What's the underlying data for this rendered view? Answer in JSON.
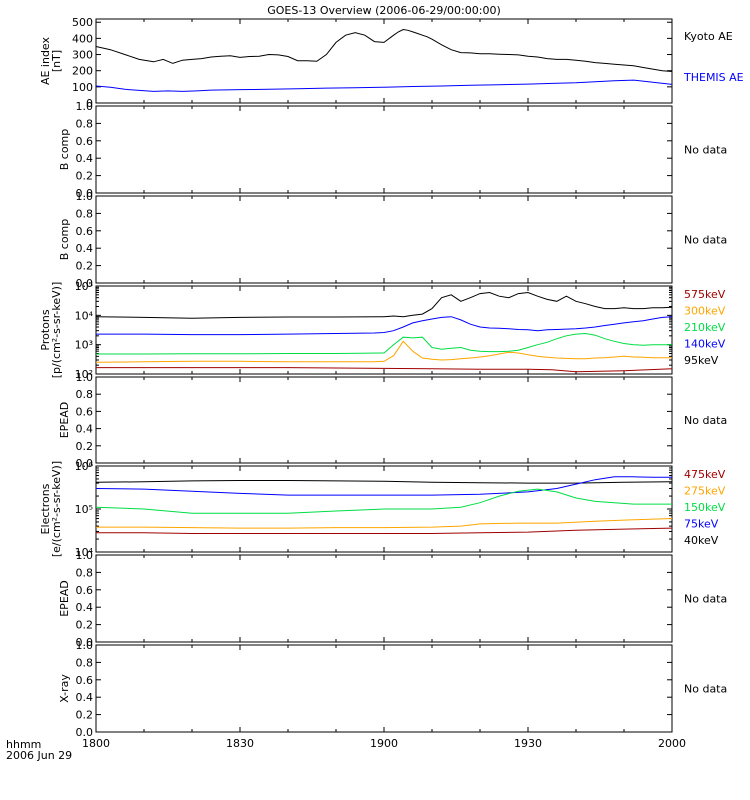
{
  "chart_data": {
    "type": "line",
    "title": "GOES-13 Overview (2006-06-29/00:00:00)",
    "x_axis": {
      "ticks": [
        "1800",
        "1830",
        "1900",
        "1930",
        "2000"
      ],
      "tick_values": [
        0,
        30,
        60,
        90,
        120
      ],
      "range": [
        0,
        120
      ],
      "label_line1": "hhmm",
      "label_line2": "2006 Jun 29"
    },
    "panels": [
      {
        "id": "ae",
        "ylabel": [
          "AE index",
          "[nT]"
        ],
        "scale": "linear",
        "ylim": [
          0,
          520
        ],
        "yticks": [
          "0",
          "100",
          "200",
          "300",
          "400",
          "500"
        ],
        "ytick_values": [
          0,
          100,
          200,
          300,
          400,
          500
        ],
        "series": [
          {
            "name": "Kyoto AE",
            "color": "#000000",
            "x": [
              0,
              3,
              6,
              9,
              12,
              14,
              16,
              18,
              20,
              22,
              24,
              26,
              28,
              30,
              32,
              34,
              36,
              38,
              40,
              42,
              44,
              46,
              48,
              50,
              52,
              54,
              56,
              58,
              60,
              62,
              63,
              64,
              65,
              66,
              67,
              68,
              69,
              70,
              72,
              74,
              76,
              78,
              80,
              82,
              84,
              86,
              88,
              90,
              92,
              94,
              96,
              98,
              100,
              102,
              104,
              106,
              108,
              110,
              112,
              114,
              116,
              118,
              120
            ],
            "y": [
              350,
              330,
              300,
              270,
              255,
              270,
              245,
              265,
              270,
              275,
              285,
              290,
              292,
              282,
              288,
              290,
              300,
              298,
              288,
              262,
              262,
              258,
              300,
              375,
              420,
              435,
              420,
              380,
              375,
              420,
              440,
              455,
              450,
              440,
              430,
              420,
              410,
              395,
              360,
              330,
              312,
              310,
              305,
              305,
              302,
              300,
              298,
              290,
              285,
              275,
              270,
              270,
              265,
              258,
              250,
              245,
              240,
              235,
              230,
              220,
              210,
              200,
              195
            ]
          },
          {
            "name": "THEMIS AE",
            "color": "#0000ff",
            "x": [
              0,
              3,
              6,
              9,
              12,
              15,
              18,
              21,
              24,
              30,
              36,
              42,
              48,
              54,
              60,
              66,
              72,
              78,
              84,
              90,
              96,
              100,
              104,
              108,
              112,
              116,
              120
            ],
            "y": [
              105,
              98,
              85,
              78,
              72,
              75,
              72,
              75,
              80,
              83,
              85,
              88,
              92,
              95,
              98,
              102,
              105,
              110,
              113,
              117,
              122,
              125,
              132,
              138,
              142,
              128,
              115
            ]
          }
        ]
      },
      {
        "id": "b-comp-1",
        "ylabel": [
          "B comp"
        ],
        "scale": "linear",
        "ylim": [
          0,
          1
        ],
        "yticks": [
          "0.0",
          "0.2",
          "0.4",
          "0.6",
          "0.8",
          "1.0"
        ],
        "ytick_values": [
          0,
          0.2,
          0.4,
          0.6,
          0.8,
          1.0
        ],
        "no_data": "No data",
        "series": []
      },
      {
        "id": "b-comp-2",
        "ylabel": [
          "B comp"
        ],
        "scale": "linear",
        "ylim": [
          0,
          1
        ],
        "yticks": [
          "0.0",
          "0.2",
          "0.4",
          "0.6",
          "0.8",
          "1.0"
        ],
        "ytick_values": [
          0,
          0.2,
          0.4,
          0.6,
          0.8,
          1.0
        ],
        "no_data": "No data",
        "series": []
      },
      {
        "id": "protons",
        "ylabel": [
          "Protons",
          "[p/(cm²-s-sr-keV)]"
        ],
        "scale": "log",
        "ylim": [
          100,
          100000
        ],
        "yticks": [
          "10²",
          "10³",
          "10⁴",
          "10⁵"
        ],
        "ytick_values": [
          100,
          1000,
          10000,
          100000
        ],
        "series": [
          {
            "name": "95keV",
            "color": "#000000",
            "x": [
              0,
              10,
              20,
              30,
              40,
              50,
              60,
              62,
              64,
              66,
              68,
              70,
              72,
              74,
              76,
              78,
              80,
              82,
              84,
              86,
              88,
              90,
              92,
              94,
              96,
              98,
              100,
              102,
              104,
              106,
              108,
              110,
              112,
              114,
              116,
              118,
              120
            ],
            "y": [
              9000,
              8500,
              8000,
              8500,
              8800,
              8800,
              9000,
              9500,
              9000,
              10000,
              11000,
              17000,
              40000,
              50000,
              30000,
              40000,
              55000,
              60000,
              45000,
              40000,
              55000,
              60000,
              45000,
              35000,
              30000,
              45000,
              30000,
              25000,
              20000,
              17000,
              17000,
              18000,
              17000,
              17000,
              18000,
              18000,
              19000
            ]
          },
          {
            "name": "140keV",
            "color": "#0000ff",
            "x": [
              0,
              10,
              20,
              30,
              40,
              50,
              58,
              60,
              62,
              64,
              66,
              68,
              70,
              72,
              74,
              76,
              78,
              80,
              82,
              84,
              86,
              88,
              90,
              92,
              94,
              96,
              98,
              100,
              102,
              104,
              106,
              108,
              110,
              112,
              114,
              116,
              118,
              120
            ],
            "y": [
              2300,
              2300,
              2200,
              2200,
              2300,
              2400,
              2500,
              2600,
              3000,
              4000,
              5500,
              6500,
              7500,
              8500,
              9000,
              7000,
              5000,
              4000,
              3700,
              3600,
              3500,
              3300,
              3200,
              3000,
              3200,
              3300,
              3400,
              3500,
              3700,
              4000,
              4500,
              5000,
              5500,
              6000,
              6500,
              7500,
              8500,
              9000
            ]
          },
          {
            "name": "210keV",
            "color": "#00dd44",
            "x": [
              0,
              10,
              20,
              30,
              40,
              50,
              60,
              62,
              64,
              66,
              68,
              70,
              72,
              74,
              76,
              78,
              80,
              82,
              84,
              86,
              88,
              90,
              92,
              94,
              96,
              98,
              100,
              102,
              104,
              106,
              108,
              110,
              112,
              114,
              116,
              118,
              120
            ],
            "y": [
              480,
              480,
              490,
              490,
              500,
              500,
              520,
              1000,
              1800,
              1700,
              1800,
              800,
              700,
              750,
              800,
              650,
              600,
              580,
              580,
              600,
              650,
              800,
              1000,
              1200,
              1600,
              2000,
              2300,
              2400,
              2100,
              1600,
              1300,
              1100,
              1000,
              950,
              1000,
              1000,
              1000
            ]
          },
          {
            "name": "300keV",
            "color": "#ffa500",
            "x": [
              0,
              10,
              20,
              30,
              40,
              50,
              58,
              60,
              62,
              64,
              66,
              68,
              70,
              72,
              74,
              76,
              78,
              80,
              82,
              84,
              86,
              88,
              90,
              92,
              94,
              96,
              98,
              100,
              102,
              104,
              106,
              108,
              110,
              112,
              114,
              116,
              118,
              120
            ],
            "y": [
              250,
              260,
              270,
              270,
              260,
              260,
              260,
              270,
              420,
              1300,
              600,
              350,
              320,
              300,
              310,
              330,
              350,
              380,
              420,
              480,
              550,
              520,
              450,
              400,
              370,
              350,
              340,
              330,
              330,
              350,
              360,
              380,
              400,
              380,
              370,
              360,
              360,
              360
            ]
          },
          {
            "name": "575keV",
            "color": "#a00000",
            "x": [
              0,
              10,
              20,
              30,
              40,
              50,
              60,
              70,
              80,
              90,
              95,
              100,
              105,
              110,
              115,
              120
            ],
            "y": [
              165,
              165,
              165,
              165,
              165,
              160,
              155,
              150,
              145,
              145,
              140,
              120,
              125,
              130,
              140,
              150
            ]
          }
        ]
      },
      {
        "id": "epead-1",
        "ylabel": [
          "EPEAD"
        ],
        "scale": "linear",
        "ylim": [
          0,
          1
        ],
        "yticks": [
          "0.0",
          "0.2",
          "0.4",
          "0.6",
          "0.8",
          "1.0"
        ],
        "ytick_values": [
          0,
          0.2,
          0.4,
          0.6,
          0.8,
          1.0
        ],
        "no_data": "No data",
        "series": []
      },
      {
        "id": "electrons",
        "ylabel": [
          "Electrons",
          "[e/(cm²-s-sr-keV)]"
        ],
        "scale": "log",
        "ylim": [
          10000,
          1000000
        ],
        "yticks": [
          "10⁴",
          "10⁵",
          "10⁶"
        ],
        "ytick_values": [
          10000,
          100000,
          1000000
        ],
        "series": [
          {
            "name": "40keV",
            "color": "#000000",
            "x": [
              0,
              10,
              20,
              30,
              40,
              50,
              60,
              70,
              80,
              90,
              100,
              110,
              120
            ],
            "y": [
              420000,
              430000,
              450000,
              460000,
              460000,
              450000,
              440000,
              420000,
              410000,
              400000,
              400000,
              420000,
              430000
            ]
          },
          {
            "name": "75keV",
            "color": "#0000ff",
            "x": [
              0,
              10,
              20,
              30,
              40,
              50,
              60,
              70,
              80,
              90,
              96,
              100,
              104,
              108,
              112,
              116,
              120
            ],
            "y": [
              300000,
              290000,
              260000,
              230000,
              210000,
              210000,
              210000,
              210000,
              220000,
              250000,
              300000,
              380000,
              480000,
              560000,
              560000,
              550000,
              550000
            ]
          },
          {
            "name": "150keV",
            "color": "#00dd44",
            "x": [
              0,
              10,
              20,
              30,
              40,
              50,
              60,
              70,
              76,
              80,
              84,
              88,
              92,
              96,
              100,
              104,
              108,
              112,
              116,
              120
            ],
            "y": [
              110000,
              100000,
              80000,
              80000,
              80000,
              90000,
              100000,
              100000,
              110000,
              140000,
              200000,
              260000,
              290000,
              250000,
              180000,
              150000,
              140000,
              130000,
              130000,
              130000
            ]
          },
          {
            "name": "275keV",
            "color": "#ffa500",
            "x": [
              0,
              10,
              20,
              30,
              40,
              50,
              60,
              70,
              76,
              80,
              88,
              96,
              104,
              112,
              120
            ],
            "y": [
              38000,
              38000,
              37000,
              36000,
              36000,
              37000,
              37000,
              38000,
              40000,
              45000,
              47000,
              47000,
              52000,
              56000,
              60000
            ]
          },
          {
            "name": "475keV",
            "color": "#a00000",
            "x": [
              0,
              10,
              20,
              30,
              40,
              50,
              60,
              70,
              80,
              90,
              100,
              110,
              120
            ],
            "y": [
              28000,
              28000,
              27000,
              27000,
              27000,
              27000,
              27000,
              27000,
              28000,
              29000,
              32000,
              34000,
              36000
            ]
          }
        ]
      },
      {
        "id": "epead-2",
        "ylabel": [
          "EPEAD"
        ],
        "scale": "linear",
        "ylim": [
          0,
          1
        ],
        "yticks": [
          "0.0",
          "0.2",
          "0.4",
          "0.6",
          "0.8",
          "1.0"
        ],
        "ytick_values": [
          0,
          0.2,
          0.4,
          0.6,
          0.8,
          1.0
        ],
        "no_data": "No data",
        "series": []
      },
      {
        "id": "x-ray",
        "ylabel": [
          "X-ray"
        ],
        "scale": "linear",
        "ylim": [
          0,
          1
        ],
        "yticks": [
          "0.0",
          "0.2",
          "0.4",
          "0.6",
          "0.8",
          "1.0"
        ],
        "ytick_values": [
          0,
          0.2,
          0.4,
          0.6,
          0.8,
          1.0
        ],
        "no_data": "No data",
        "series": []
      }
    ]
  }
}
